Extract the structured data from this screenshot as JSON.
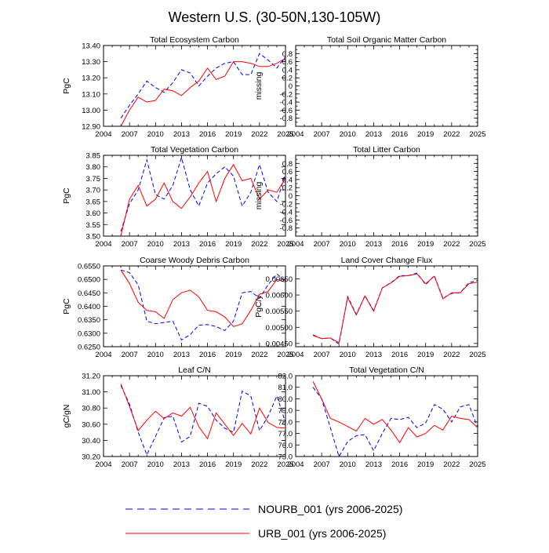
{
  "figure_title": "Western U.S. (30-50N,130-105W)",
  "legend": [
    {
      "label": "NOURB_001 (yrs 2006-2025)",
      "color": "#0000ff",
      "dash": "dashed"
    },
    {
      "label": "URB_001 (yrs 2006-2025)",
      "color": "#ff0000",
      "dash": "solid"
    }
  ],
  "colors": {
    "nourb": "#0000ff",
    "urb": "#ff0000"
  },
  "chart_data": [
    {
      "type": "line",
      "title": "Total Ecosystem Carbon",
      "ylabel": "PgC",
      "xlim": [
        2004,
        2025
      ],
      "xticks": [
        "2004",
        "2007",
        "2010",
        "2013",
        "2016",
        "2019",
        "2022",
        "2025"
      ],
      "ylim": [
        12.9,
        13.4
      ],
      "yticks": [
        "12.90",
        "13.00",
        "13.10",
        "13.20",
        "13.30",
        "13.40"
      ],
      "x": [
        2006,
        2007,
        2008,
        2009,
        2010,
        2011,
        2012,
        2013,
        2014,
        2015,
        2016,
        2017,
        2018,
        2019,
        2020,
        2021,
        2022,
        2023,
        2024,
        2025
      ],
      "series": [
        {
          "name": "NOURB_001 (yrs 2006-2025)",
          "color": "#0000ff",
          "dash": "dashed",
          "values": [
            12.95,
            13.03,
            13.1,
            13.18,
            13.14,
            13.11,
            13.17,
            13.25,
            13.23,
            13.15,
            13.21,
            13.26,
            13.29,
            13.3,
            13.22,
            13.22,
            13.35,
            13.31,
            13.26,
            13.33
          ]
        },
        {
          "name": "URB_001 (yrs 2006-2025)",
          "color": "#ff0000",
          "dash": "solid",
          "values": [
            12.9,
            13.0,
            13.08,
            13.05,
            13.06,
            13.13,
            13.12,
            13.09,
            13.14,
            13.18,
            13.26,
            13.19,
            13.21,
            13.3,
            13.3,
            13.29,
            13.27,
            13.27,
            13.29,
            13.32
          ]
        }
      ]
    },
    {
      "type": "line",
      "title": "Total Soil Organic Matter Carbon",
      "ylabel": "missing",
      "xlim": [
        2004,
        2025
      ],
      "xticks": [
        "2004",
        "2007",
        "2010",
        "2013",
        "2016",
        "2019",
        "2022",
        "2025"
      ],
      "ylim": [
        -1,
        1
      ],
      "yticks": [
        "-0.8",
        "-0.6",
        "-0.4",
        "-0.2",
        "0",
        "0.2",
        "0.4",
        "0.6",
        "0.8"
      ],
      "yminor": true,
      "x": [],
      "series": []
    },
    {
      "type": "line",
      "title": "Total Vegetation Carbon",
      "ylabel": "PgC",
      "xlim": [
        2004,
        2025
      ],
      "xticks": [
        "2004",
        "2007",
        "2010",
        "2013",
        "2016",
        "2019",
        "2022",
        "2025"
      ],
      "ylim": [
        3.5,
        3.85
      ],
      "yticks": [
        "3.50",
        "3.55",
        "3.60",
        "3.65",
        "3.70",
        "3.75",
        "3.80",
        "3.85"
      ],
      "x": [
        2006,
        2007,
        2008,
        2009,
        2010,
        2011,
        2012,
        2013,
        2014,
        2015,
        2016,
        2017,
        2018,
        2019,
        2020,
        2021,
        2022,
        2023,
        2024,
        2025
      ],
      "series": [
        {
          "name": "NOURB_001 (yrs 2006-2025)",
          "color": "#0000ff",
          "dash": "dashed",
          "values": [
            3.52,
            3.64,
            3.7,
            3.83,
            3.68,
            3.66,
            3.72,
            3.84,
            3.7,
            3.63,
            3.73,
            3.77,
            3.8,
            3.76,
            3.63,
            3.69,
            3.81,
            3.69,
            3.65,
            3.77
          ]
        },
        {
          "name": "URB_001 (yrs 2006-2025)",
          "color": "#ff0000",
          "dash": "solid",
          "values": [
            3.5,
            3.66,
            3.72,
            3.63,
            3.66,
            3.73,
            3.65,
            3.62,
            3.67,
            3.73,
            3.78,
            3.65,
            3.75,
            3.81,
            3.74,
            3.75,
            3.66,
            3.7,
            3.69,
            3.75
          ]
        }
      ]
    },
    {
      "type": "line",
      "title": "Total Litter Carbon",
      "ylabel": "missing",
      "xlim": [
        2004,
        2025
      ],
      "xticks": [
        "2004",
        "2007",
        "2010",
        "2013",
        "2016",
        "2019",
        "2022",
        "2025"
      ],
      "ylim": [
        -1,
        1
      ],
      "yticks": [
        "-0.8",
        "-0.6",
        "-0.4",
        "-0.2",
        "0",
        "0.2",
        "0.4",
        "0.6",
        "0.8"
      ],
      "yminor": true,
      "x": [],
      "series": []
    },
    {
      "type": "line",
      "title": "Coarse Woody Debris Carbon",
      "ylabel": "PgC",
      "xlim": [
        2004,
        2025
      ],
      "xticks": [
        "2004",
        "2007",
        "2010",
        "2013",
        "2016",
        "2019",
        "2022",
        "2025"
      ],
      "ylim": [
        0.625,
        0.655
      ],
      "yticks": [
        "0.6250",
        "0.6300",
        "0.6350",
        "0.6400",
        "0.6450",
        "0.6500",
        "0.6550"
      ],
      "x": [
        2006,
        2007,
        2008,
        2009,
        2010,
        2011,
        2012,
        2013,
        2014,
        2015,
        2016,
        2017,
        2018,
        2019,
        2020,
        2021,
        2022,
        2023,
        2024,
        2025
      ],
      "series": [
        {
          "name": "NOURB_001 (yrs 2006-2025)",
          "color": "#0000ff",
          "dash": "dashed",
          "values": [
            0.6535,
            0.6525,
            0.648,
            0.6345,
            0.6335,
            0.634,
            0.6345,
            0.6275,
            0.6295,
            0.633,
            0.6332,
            0.6325,
            0.631,
            0.6345,
            0.645,
            0.6455,
            0.643,
            0.648,
            0.652,
            0.6495
          ]
        },
        {
          "name": "URB_001 (yrs 2006-2025)",
          "color": "#ff0000",
          "dash": "solid",
          "values": [
            0.6535,
            0.6485,
            0.6415,
            0.6385,
            0.638,
            0.6355,
            0.6425,
            0.645,
            0.646,
            0.6435,
            0.6385,
            0.638,
            0.636,
            0.6325,
            0.6335,
            0.6385,
            0.6445,
            0.6455,
            0.65,
            0.649
          ]
        }
      ]
    },
    {
      "type": "line",
      "title": "Land Cover Change Flux",
      "ylabel": "PgC/y",
      "xlim": [
        2004,
        2025
      ],
      "xticks": [
        "2004",
        "2007",
        "2010",
        "2013",
        "2016",
        "2019",
        "2022",
        "2025"
      ],
      "ylim": [
        0.0044,
        0.0069
      ],
      "yticks": [
        "0.00450",
        "0.00500",
        "0.00550",
        "0.00600",
        "0.00650"
      ],
      "x": [
        2006,
        2007,
        2008,
        2009,
        2010,
        2011,
        2012,
        2013,
        2014,
        2015,
        2016,
        2017,
        2018,
        2019,
        2020,
        2021,
        2022,
        2023,
        2024,
        2025
      ],
      "series": [
        {
          "name": "NOURB_001 (yrs 2006-2025)",
          "color": "#0000ff",
          "dash": "dashed",
          "values": [
            0.00477,
            0.00465,
            0.00467,
            0.00448,
            0.00595,
            0.0054,
            0.00598,
            0.00552,
            0.00622,
            0.00638,
            0.0066,
            0.0066,
            0.00668,
            0.00632,
            0.0066,
            0.0059,
            0.00605,
            0.00607,
            0.00638,
            0.00645
          ]
        },
        {
          "name": "URB_001 (yrs 2006-2025)",
          "color": "#ff0000",
          "dash": "solid",
          "values": [
            0.00475,
            0.00465,
            0.00467,
            0.00452,
            0.00592,
            0.00538,
            0.00597,
            0.0055,
            0.00622,
            0.00637,
            0.00658,
            0.0066,
            0.00665,
            0.00635,
            0.00658,
            0.00588,
            0.00607,
            0.00607,
            0.00635,
            0.0064
          ]
        }
      ]
    },
    {
      "type": "line",
      "title": "Leaf C/N",
      "ylabel": "gC/gN",
      "xlim": [
        2004,
        2025
      ],
      "xticks": [
        "2004",
        "2007",
        "2010",
        "2013",
        "2016",
        "2019",
        "2022",
        "2025"
      ],
      "ylim": [
        30.2,
        31.2
      ],
      "yticks": [
        "30.20",
        "30.40",
        "30.60",
        "30.80",
        "31.00",
        "31.20"
      ],
      "x": [
        2006,
        2007,
        2008,
        2009,
        2010,
        2011,
        2012,
        2013,
        2014,
        2015,
        2016,
        2017,
        2018,
        2019,
        2020,
        2021,
        2022,
        2023,
        2024,
        2025
      ],
      "series": [
        {
          "name": "NOURB_001 (yrs 2006-2025)",
          "color": "#0000ff",
          "dash": "dashed",
          "values": [
            31.08,
            30.85,
            30.5,
            30.22,
            30.45,
            30.68,
            30.7,
            30.38,
            30.45,
            30.86,
            30.82,
            30.65,
            30.55,
            30.5,
            31.01,
            30.95,
            30.52,
            30.7,
            30.95,
            30.62
          ]
        },
        {
          "name": "URB_001 (yrs 2006-2025)",
          "color": "#ff0000",
          "dash": "solid",
          "values": [
            31.1,
            30.82,
            30.52,
            30.65,
            30.76,
            30.67,
            30.74,
            30.7,
            30.81,
            30.57,
            30.42,
            30.74,
            30.6,
            30.46,
            30.61,
            30.48,
            30.8,
            30.62,
            30.56,
            30.55
          ]
        }
      ]
    },
    {
      "type": "line",
      "title": "Total Vegetation C/N",
      "ylabel": "",
      "xlim": [
        2004,
        2025
      ],
      "xticks": [
        "2004",
        "2007",
        "2010",
        "2013",
        "2016",
        "2019",
        "2022",
        "2025"
      ],
      "ylim": [
        75.0,
        82.0
      ],
      "yticks": [
        "75.0",
        "76.0",
        "77.0",
        "78.0",
        "79.0",
        "80.0",
        "81.0",
        "82.0"
      ],
      "x": [
        2006,
        2007,
        2008,
        2009,
        2010,
        2011,
        2012,
        2013,
        2014,
        2015,
        2016,
        2017,
        2018,
        2019,
        2020,
        2021,
        2022,
        2023,
        2024,
        2025
      ],
      "series": [
        {
          "name": "NOURB_001 (yrs 2006-2025)",
          "color": "#0000ff",
          "dash": "dashed",
          "values": [
            81.0,
            80.0,
            77.5,
            75.0,
            76.3,
            76.8,
            76.9,
            75.5,
            77.0,
            78.3,
            78.2,
            78.4,
            77.5,
            77.9,
            79.5,
            79.1,
            78.0,
            79.3,
            79.5,
            77.5
          ]
        },
        {
          "name": "URB_001 (yrs 2006-2025)",
          "color": "#ff0000",
          "dash": "solid",
          "values": [
            81.5,
            80.0,
            78.3,
            78.0,
            77.6,
            77.2,
            78.3,
            77.8,
            78.2,
            77.3,
            76.2,
            77.5,
            76.7,
            77.0,
            77.7,
            77.3,
            78.5,
            78.3,
            78.2,
            77.5
          ]
        }
      ]
    }
  ]
}
